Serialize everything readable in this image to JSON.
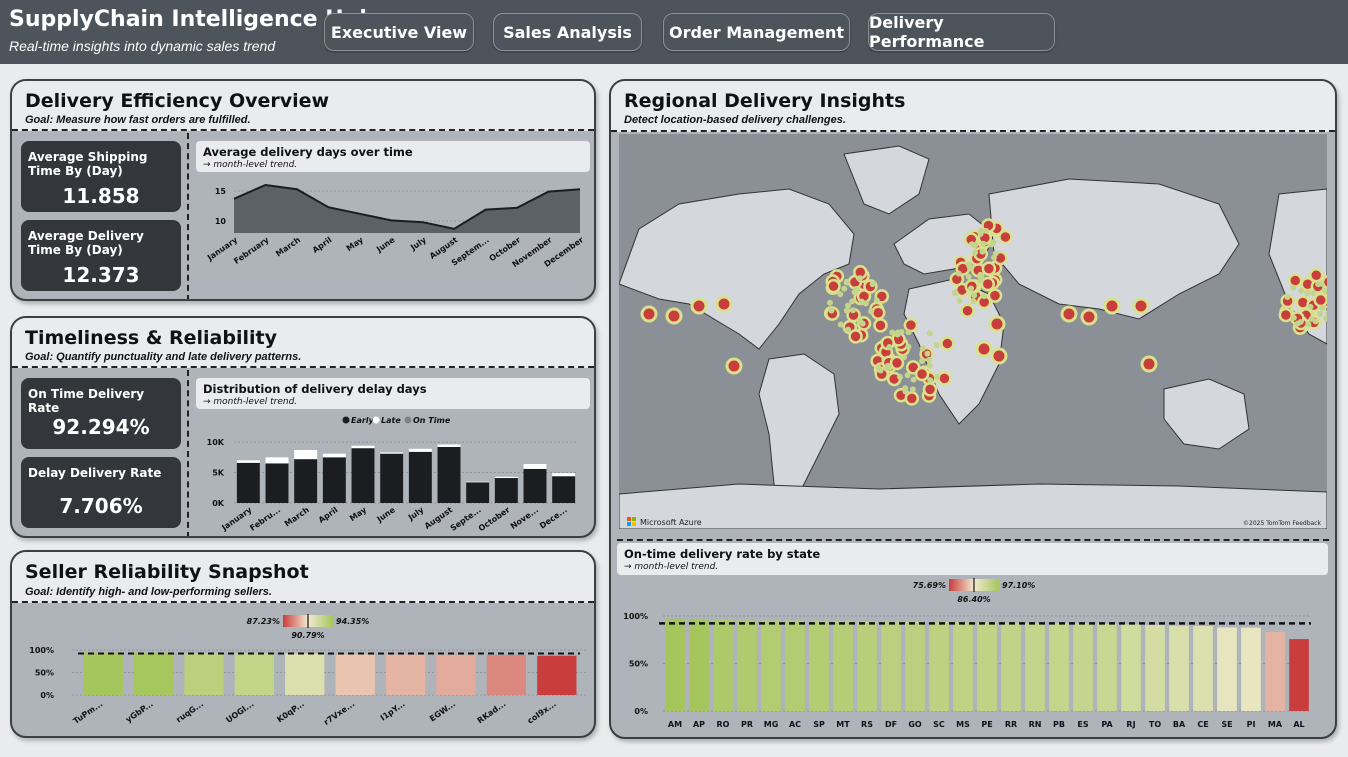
{
  "header": {
    "title": "SupplyChain Intelligence Hub",
    "subtitle": "Real-time insights into dynamic sales trend",
    "nav": [
      "Executive View",
      "Sales Analysis",
      "Order Management",
      "Delivery Performance"
    ]
  },
  "efficiency": {
    "title": "Delivery Efficiency Overview",
    "goal": "Goal: Measure how fast orders are fulfilled.",
    "kpi1": {
      "label": "Average Shipping Time By (Day)",
      "value": "11.858"
    },
    "kpi2": {
      "label": "Average Delivery Time By (Day)",
      "value": "12.373"
    },
    "chart_title": "Average delivery days over time",
    "chart_sub": "→ month-level trend."
  },
  "timeliness": {
    "title": "Timeliness & Reliability",
    "goal": "Goal: Quantify punctuality and late delivery patterns.",
    "kpi1": {
      "label": "On Time Delivery Rate",
      "value": "92.294%"
    },
    "kpi2": {
      "label": "Delay Delivery Rate",
      "value": "7.706%"
    },
    "chart_title": "Distribution of delivery delay days",
    "chart_sub": "→ month-level trend."
  },
  "seller": {
    "title": "Seller Reliability Snapshot",
    "goal": "Goal: Identify high- and low-performing sellers.",
    "gradient": {
      "min": "87.23%",
      "mid": "90.79%",
      "max": "94.35%"
    }
  },
  "regional": {
    "title": "Regional Delivery Insights",
    "goal": "Detect location-based delivery challenges.",
    "map_brand": "Microsoft Azure",
    "map_credit": "©2025 TomTom Feedback",
    "chart_title": "On-time delivery rate by state",
    "chart_sub": "→ month-level trend.",
    "gradient": {
      "min": "75.69%",
      "mid": "86.40%",
      "max": "97.10%"
    }
  },
  "colors": {
    "accent_dark": "#33373c",
    "good": "#a4c65c",
    "bad": "#c93d3d",
    "panel_bg": "#aeb4ba"
  },
  "chart_data": [
    {
      "type": "area",
      "categories": [
        "January",
        "February",
        "March",
        "April",
        "May",
        "June",
        "July",
        "August",
        "Septem...",
        "October",
        "November",
        "December"
      ],
      "values": [
        13.7,
        16.0,
        15.3,
        12.3,
        11.2,
        10.1,
        9.8,
        8.7,
        11.9,
        12.2,
        14.9,
        15.3
      ],
      "yticks": [
        "10",
        "15"
      ],
      "ylim": [
        8,
        17
      ]
    },
    {
      "type": "bar",
      "stacked": true,
      "categories": [
        "January",
        "Febru...",
        "March",
        "April",
        "May",
        "June",
        "July",
        "August",
        "Septe...",
        "October",
        "Nove...",
        "Dece..."
      ],
      "legend": [
        "Early",
        "Late",
        "On Time"
      ],
      "legend_placement": "top",
      "series": [
        {
          "name": "Early",
          "values": [
            6600,
            6500,
            7200,
            7500,
            9000,
            8100,
            8400,
            9200,
            3400,
            4100,
            5600,
            4400
          ]
        },
        {
          "name": "Late",
          "values": [
            400,
            1000,
            1500,
            600,
            400,
            200,
            500,
            400,
            100,
            200,
            800,
            500
          ]
        },
        {
          "name": "On Time",
          "values": [
            0,
            0,
            0,
            0,
            0,
            0,
            0,
            0,
            0,
            0,
            0,
            0
          ]
        }
      ],
      "yticks": [
        "0K",
        "5K",
        "10K"
      ],
      "ylim": [
        0,
        11000
      ]
    },
    {
      "type": "bar",
      "categories": [
        "TuPm...",
        "yGbP...",
        "ruqG...",
        "UOGl...",
        "K0qP...",
        "r7Vxe...",
        "I1pY...",
        "EGW...",
        "RKad...",
        "coI9x..."
      ],
      "values": [
        94.35,
        94.3,
        93.3,
        93.0,
        91.8,
        90.0,
        89.7,
        89.5,
        88.8,
        87.23
      ],
      "yticks": [
        "0%",
        "50%",
        "100%"
      ],
      "ylim": [
        0,
        100
      ],
      "reference_line": 92.3
    },
    {
      "type": "bar",
      "categories": [
        "AM",
        "AP",
        "RO",
        "PR",
        "MG",
        "AC",
        "SP",
        "MT",
        "RS",
        "DF",
        "GO",
        "SC",
        "MS",
        "PE",
        "RR",
        "RN",
        "PB",
        "ES",
        "PA",
        "RJ",
        "TO",
        "BA",
        "CE",
        "SE",
        "PI",
        "MA",
        "AL"
      ],
      "values": [
        97.1,
        97.0,
        95.8,
        95.5,
        95.2,
        95.2,
        95.0,
        94.8,
        94.5,
        94.0,
        94.0,
        93.7,
        93.4,
        93.3,
        93.1,
        92.8,
        92.7,
        92.5,
        92.0,
        91.0,
        90.5,
        89.8,
        89.5,
        88.0,
        87.8,
        83.0,
        75.69
      ],
      "yticks": [
        "0%",
        "50%",
        "100%"
      ],
      "ylim": [
        0,
        100
      ],
      "reference_line": 92.3
    }
  ]
}
